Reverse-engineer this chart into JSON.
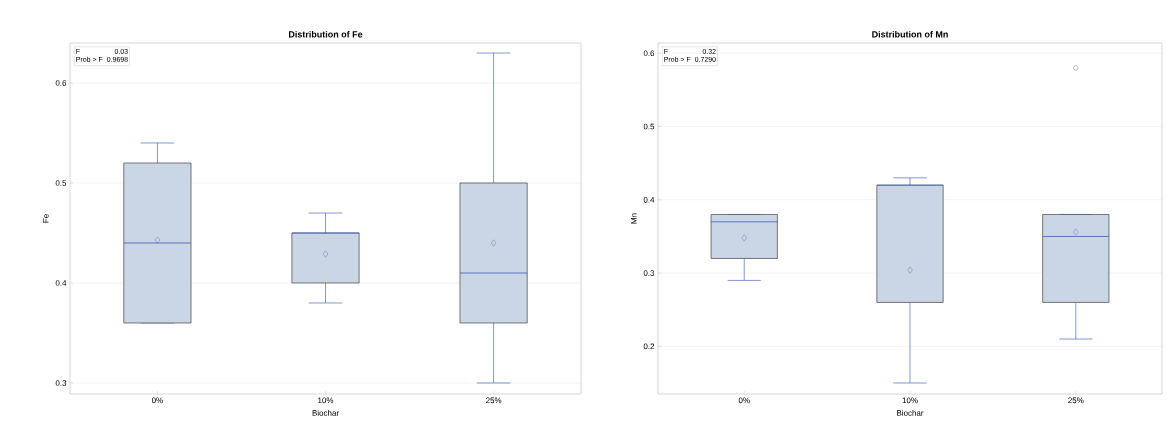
{
  "chart_data": [
    {
      "type": "box",
      "title": "Distribution of Fe",
      "xlabel": "Biochar",
      "ylabel": "Fe",
      "categories": [
        "0%",
        "10%",
        "25%"
      ],
      "boxes": [
        {
          "low": 0.36,
          "q1": 0.36,
          "median": 0.44,
          "q3": 0.52,
          "high": 0.54,
          "mean": 0.443
        },
        {
          "low": 0.38,
          "q1": 0.4,
          "median": 0.45,
          "q3": 0.45,
          "high": 0.47,
          "mean": 0.429
        },
        {
          "low": 0.3,
          "q1": 0.36,
          "median": 0.41,
          "q3": 0.5,
          "high": 0.63,
          "mean": 0.44
        }
      ],
      "color": "#cad5e5",
      "ylim": [
        0.289,
        0.64
      ],
      "yticks": [
        0.3,
        0.4,
        0.5,
        0.6
      ],
      "grid": "y",
      "annotations": [
        "F",
        "0.03",
        "Prob > F",
        "0.9698"
      ]
    },
    {
      "type": "box",
      "title": "Distribution of Mn",
      "xlabel": "Biochar",
      "ylabel": "Mn",
      "categories": [
        "0%",
        "10%",
        "25%"
      ],
      "boxes": [
        {
          "low": 0.29,
          "q1": 0.32,
          "median": 0.37,
          "q3": 0.38,
          "high": 0.38,
          "mean": 0.348
        },
        {
          "low": 0.15,
          "q1": 0.26,
          "median": 0.42,
          "q3": 0.42,
          "high": 0.43,
          "mean": 0.304
        },
        {
          "low": 0.21,
          "q1": 0.26,
          "median": 0.35,
          "q3": 0.38,
          "high": 0.38,
          "mean": 0.356,
          "outliers": [
            0.58
          ]
        }
      ],
      "color": "#cad5e5",
      "ylim": [
        0.135,
        0.614
      ],
      "yticks": [
        0.2,
        0.3,
        0.4,
        0.5,
        0.6
      ],
      "grid": "y",
      "annotations": [
        "F",
        "0.32",
        "Prob > F",
        "0.7290"
      ]
    }
  ]
}
